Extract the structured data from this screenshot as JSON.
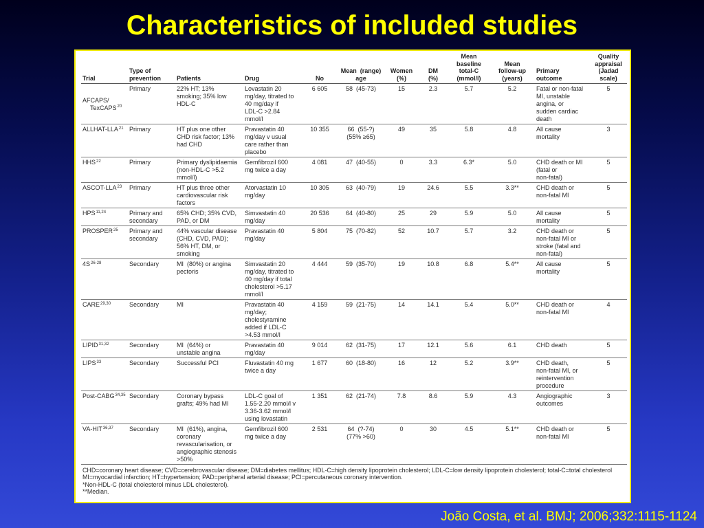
{
  "slide": {
    "title": "Characteristics of included studies",
    "citation": "João Costa, et al. BMJ; 2006;332:1115-1124"
  },
  "colors": {
    "title": "#ffff00",
    "citation": "#ffff00",
    "panel_border": "#f2ec00",
    "panel_background": "#ffffff"
  },
  "table": {
    "columns": [
      "Trial",
      "Type of\nprevention",
      "Patients",
      "Drug",
      "No",
      "Mean  (range)\nage",
      "Women\n(%)",
      "DM\n(%)",
      "Mean\nbaseline\ntotal-C\n(mmol/l)",
      "Mean\nfollow-up\n(years)",
      "Primary\noutcome",
      "Quality\nappraisal\n(Jadad\nscale)"
    ],
    "rows": [
      {
        "trial": "AFCAPS/\nTexCAPS",
        "ref": "20",
        "prevention": "Primary",
        "patients": "22% HT; 13%\nsmoking; 35% low\nHDL-C",
        "drug": "Lovastatin 20\nmg/day, titrated to\n40 mg/day if\nLDL-C >2.84\nmmol/l",
        "no": "6 605",
        "age": "58  (45-73)",
        "women": "15",
        "dm": "2.3",
        "baseline_total_c": "5.7",
        "follow_up": "5.2",
        "outcome": "Fatal or non-fatal\nMI, unstable\nangina, or\nsudden cardiac\ndeath",
        "quality": "5"
      },
      {
        "trial": "ALLHAT-LLA",
        "ref": "21",
        "prevention": "Primary",
        "patients": "HT plus one other\nCHD risk factor; 13%\nhad CHD",
        "drug": "Pravastatin 40\nmg/day v usual\ncare rather than\nplacebo",
        "no": "10 355",
        "age": "66  (55-?)\n(55% ≥65)",
        "women": "49",
        "dm": "35",
        "baseline_total_c": "5.8",
        "follow_up": "4.8",
        "outcome": "All cause\nmortality",
        "quality": "3"
      },
      {
        "trial": "HHS",
        "ref": "22",
        "prevention": "Primary",
        "patients": "Primary dyslipidaemia\n(non-HDL-C >5.2\nmmol/l)",
        "drug": "Gemfibrozil 600\nmg twice a day",
        "no": "4 081",
        "age": "47  (40-55)",
        "women": "0",
        "dm": "3.3",
        "baseline_total_c": "6.3*",
        "follow_up": "5.0",
        "outcome": "CHD death or MI\n(fatal or\nnon-fatal)",
        "quality": "5"
      },
      {
        "trial": "ASCOT-LLA",
        "ref": "23",
        "prevention": "Primary",
        "patients": "HT plus three other\ncardiovascular risk\nfactors",
        "drug": "Atorvastatin 10\nmg/day",
        "no": "10 305",
        "age": "63  (40-79)",
        "women": "19",
        "dm": "24.6",
        "baseline_total_c": "5.5",
        "follow_up": "3.3**",
        "outcome": "CHD death or\nnon-fatal MI",
        "quality": "5"
      },
      {
        "trial": "HPS",
        "ref": "11,24",
        "prevention": "Primary and\nsecondary",
        "patients": "65% CHD; 35% CVD,\nPAD, or DM",
        "drug": "Simvastatin 40\nmg/day",
        "no": "20 536",
        "age": "64  (40-80)",
        "women": "25",
        "dm": "29",
        "baseline_total_c": "5.9",
        "follow_up": "5.0",
        "outcome": "All cause\nmortality",
        "quality": "5"
      },
      {
        "trial": "PROSPER",
        "ref": "25",
        "prevention": "Primary and\nsecondary",
        "patients": "44% vascular disease\n(CHD, CVD, PAD);\n56% HT, DM, or\nsmoking",
        "drug": "Pravastatin 40\nmg/day",
        "no": "5 804",
        "age": "75  (70-82)",
        "women": "52",
        "dm": "10.7",
        "baseline_total_c": "5.7",
        "follow_up": "3.2",
        "outcome": "CHD death or\nnon-fatal MI or\nstroke (fatal and\nnon-fatal)",
        "quality": "5"
      },
      {
        "trial": "4S",
        "ref": "26-28",
        "prevention": "Secondary",
        "patients": "MI  (80%) or angina\npectoris",
        "drug": "Simvastatin 20\nmg/day, titrated to\n40 mg/day if total\ncholesterol >5.17\nmmol/l",
        "no": "4 444",
        "age": "59  (35-70)",
        "women": "19",
        "dm": "10.8",
        "baseline_total_c": "6.8",
        "follow_up": "5.4**",
        "outcome": "All cause\nmortality",
        "quality": "5"
      },
      {
        "trial": "CARE",
        "ref": "29,30",
        "prevention": "Secondary",
        "patients": "MI",
        "drug": "Pravastatin 40\nmg/day;\ncholestyramine\nadded if LDL-C\n>4.53 mmol/l",
        "no": "4 159",
        "age": "59  (21-75)",
        "women": "14",
        "dm": "14.1",
        "baseline_total_c": "5.4",
        "follow_up": "5.0**",
        "outcome": "CHD death or\nnon-fatal MI",
        "quality": "4"
      },
      {
        "trial": "LIPID",
        "ref": "31,32",
        "prevention": "Secondary",
        "patients": "MI  (64%) or\nunstable angina",
        "drug": "Pravastatin 40\nmg/day",
        "no": "9 014",
        "age": "62  (31-75)",
        "women": "17",
        "dm": "12.1",
        "baseline_total_c": "5.6",
        "follow_up": "6.1",
        "outcome": "CHD death",
        "quality": "5"
      },
      {
        "trial": "LIPS",
        "ref": "33",
        "prevention": "Secondary",
        "patients": "Successful PCI",
        "drug": "Fluvastatin 40 mg\ntwice a day",
        "no": "1 677",
        "age": "60  (18-80)",
        "women": "16",
        "dm": "12",
        "baseline_total_c": "5.2",
        "follow_up": "3.9**",
        "outcome": "CHD death,\nnon-fatal MI, or\nreintervention\nprocedure",
        "quality": "5"
      },
      {
        "trial": "Post-CABG",
        "ref": "34,35",
        "prevention": "Secondary",
        "patients": "Coronary bypass\ngrafts; 49% had MI",
        "drug": "LDL-C goal of\n1.55-2.20 mmol/l v\n3.36-3.62 mmol/l\nusing lovastatin",
        "no": "1 351",
        "age": "62  (21-74)",
        "women": "7.8",
        "dm": "8.6",
        "baseline_total_c": "5.9",
        "follow_up": "4.3",
        "outcome": "Angiographic\noutcomes",
        "quality": "3"
      },
      {
        "trial": "VA-HIT",
        "ref": "36,37",
        "prevention": "Secondary",
        "patients": "MI  (61%), angina,\ncoronary\nrevascularisation, or\nangiographic stenosis\n>50%",
        "drug": "Gemfibrozil 600\nmg twice a day",
        "no": "2 531",
        "age": "64  (?-74)\n(77% >60)",
        "women": "0",
        "dm": "30",
        "baseline_total_c": "4.5",
        "follow_up": "5.1**",
        "outcome": "CHD death or\nnon-fatal MI",
        "quality": "5"
      }
    ],
    "footnotes": [
      "CHD=coronary heart disease; CVD=cerebrovascular disease; DM=diabetes mellitus; HDL-C=high density lipoprotein cholesterol; LDL-C=low density lipoprotein cholesterol; total-C=total cholesterol",
      "MI=myocardial infarction; HT=hypertension; PAD=peripheral arterial disease; PCI=percutaneous coronary intervention.",
      "*Non-HDL-C (total cholesterol minus LDL cholesterol).",
      "**Median."
    ]
  }
}
